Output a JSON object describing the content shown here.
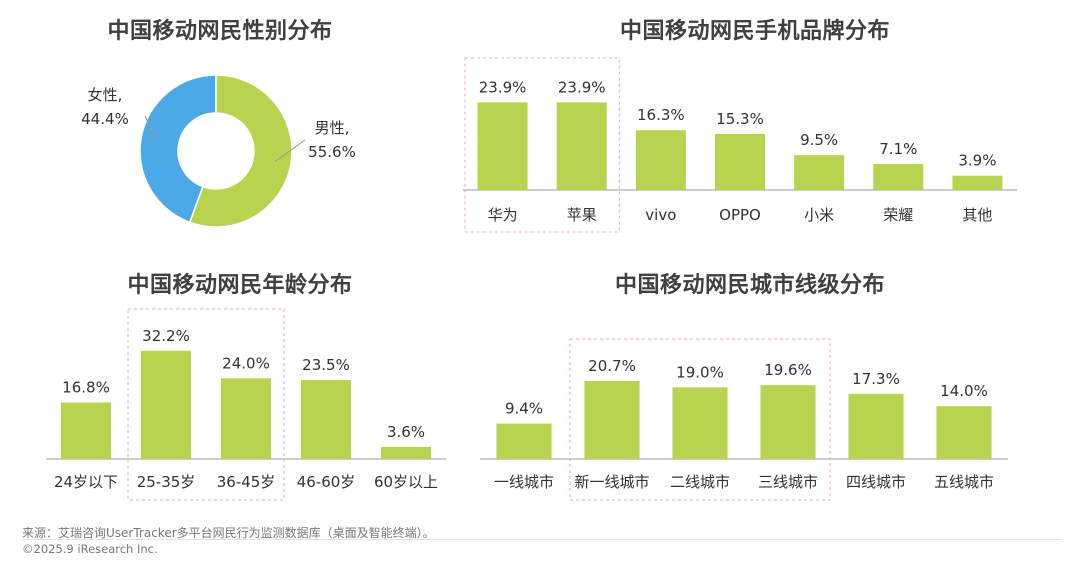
{
  "colors": {
    "bar": "#b7d350",
    "female": "#4aa9e6",
    "male": "#b7d350",
    "axis": "#999999",
    "highlight": "#e8a7b8"
  },
  "titles": {
    "gender": "中国移动网民性别分布",
    "brand": "中国移动网民手机品牌分布",
    "age": "中国移动网民年龄分布",
    "city": "中国移动网民城市线级分布"
  },
  "chart_data": [
    {
      "type": "pie",
      "title": "中国移动网民性别分布",
      "labels": [
        "女性,",
        "男性,"
      ],
      "values": [
        44.4,
        55.6
      ],
      "value_labels": [
        "44.4%",
        "55.6%"
      ],
      "donut": true
    },
    {
      "type": "bar",
      "title": "中国移动网民手机品牌分布",
      "categories": [
        "华为",
        "苹果",
        "vivo",
        "OPPO",
        "小米",
        "荣耀",
        "其他"
      ],
      "values": [
        23.9,
        23.9,
        16.3,
        15.3,
        9.5,
        7.1,
        3.9
      ],
      "value_labels": [
        "23.9%",
        "23.9%",
        "16.3%",
        "15.3%",
        "9.5%",
        "7.1%",
        "3.9%"
      ],
      "highlighted": [
        "华为",
        "苹果"
      ],
      "ylim": [
        0,
        30
      ]
    },
    {
      "type": "bar",
      "title": "中国移动网民年龄分布",
      "categories": [
        "24岁以下",
        "25-35岁",
        "36-45岁",
        "46-60岁",
        "60岁以上"
      ],
      "values": [
        16.8,
        32.2,
        24.0,
        23.5,
        3.6
      ],
      "value_labels": [
        "16.8%",
        "32.2%",
        "24.0%",
        "23.5%",
        "3.6%"
      ],
      "highlighted": [
        "25-35岁",
        "36-45岁"
      ],
      "ylim": [
        0,
        36
      ]
    },
    {
      "type": "bar",
      "title": "中国移动网民城市线级分布",
      "categories": [
        "一线城市",
        "新一线城市",
        "二线城市",
        "三线城市",
        "四线城市",
        "五线城市"
      ],
      "values": [
        9.4,
        20.7,
        19.0,
        19.6,
        17.3,
        14.0
      ],
      "value_labels": [
        "9.4%",
        "20.7%",
        "19.0%",
        "19.6%",
        "17.3%",
        "14.0%"
      ],
      "highlighted": [
        "新一线城市",
        "二线城市",
        "三线城市"
      ],
      "ylim": [
        0,
        26
      ]
    }
  ],
  "footer": {
    "source": "来源：艾瑞咨询UserTracker多平台网民行为监测数据库（桌面及智能终端）。",
    "copyright": "©2025.9 iResearch Inc."
  }
}
